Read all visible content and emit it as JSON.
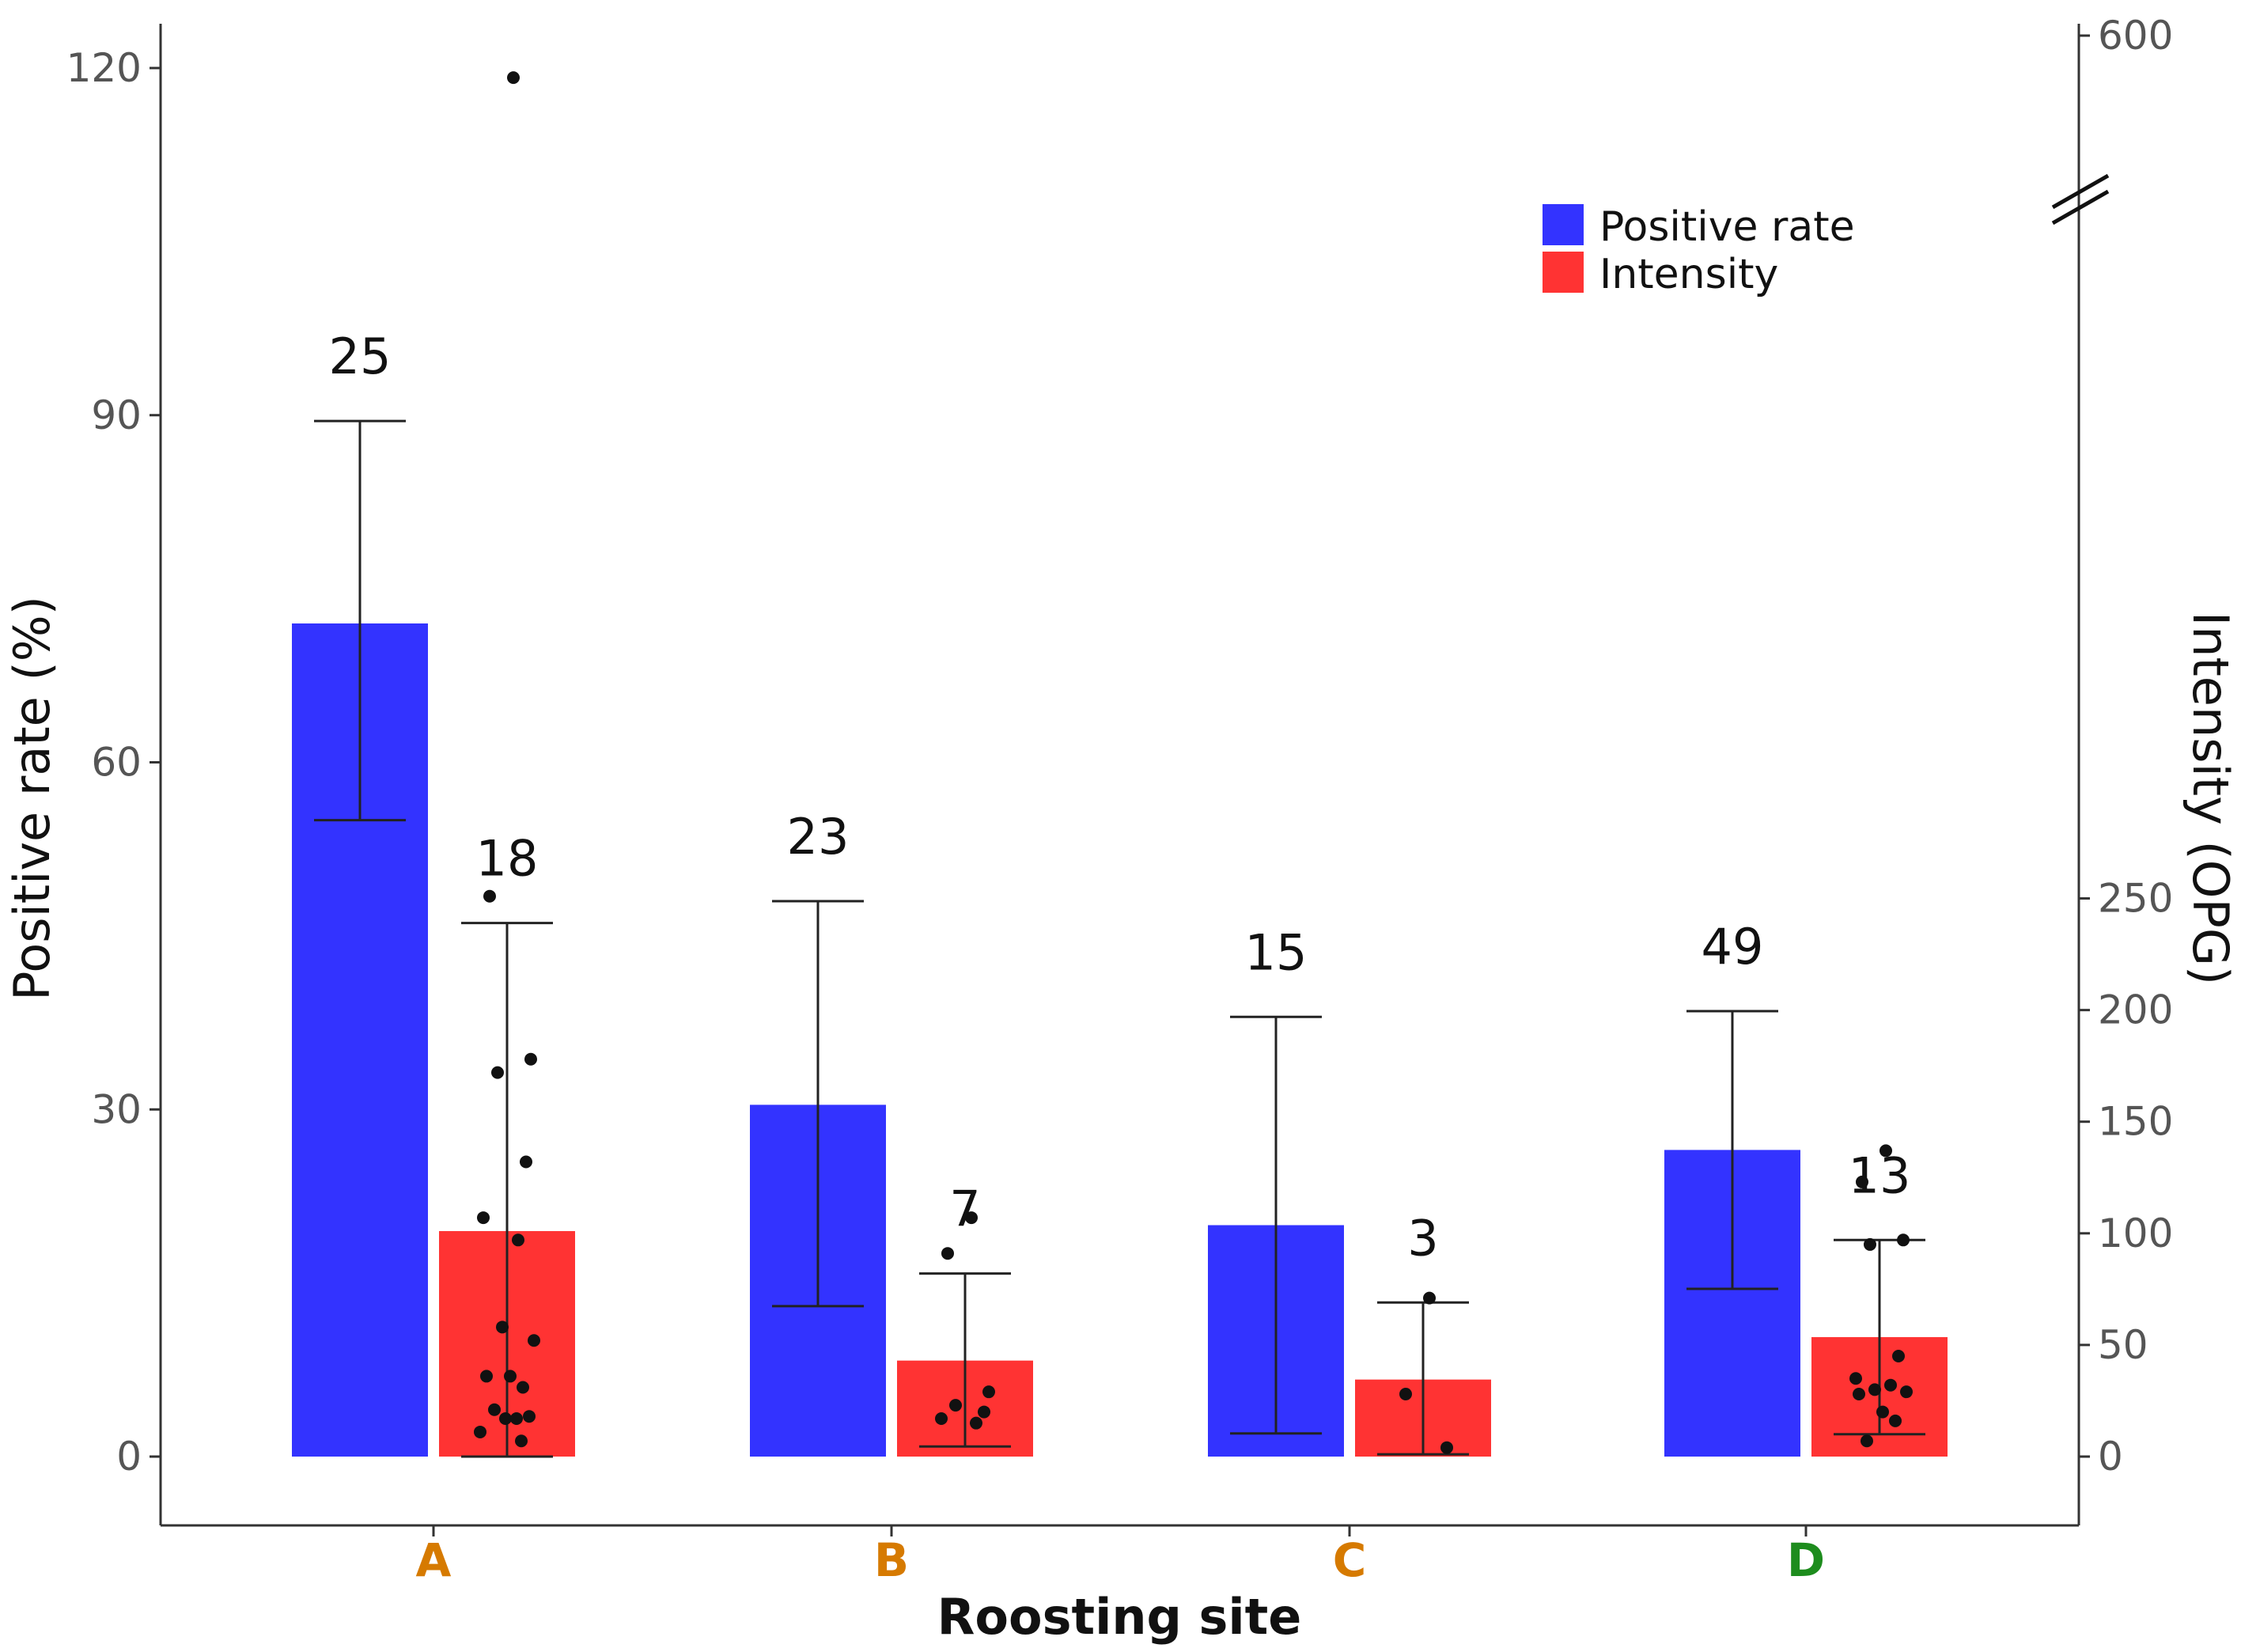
{
  "chart_data": {
    "type": "bar",
    "xlabel": "Roosting site",
    "ylabel": "Positive rate (%)",
    "y2label": "Intensity (OPG)",
    "categories": [
      "A",
      "B",
      "C",
      "D"
    ],
    "category_colors": [
      "#d67a00",
      "#d67a00",
      "#d67a00",
      "#1d8c1d"
    ],
    "ylim": [
      0,
      120
    ],
    "yticks": [
      "0",
      "30",
      "60",
      "90",
      "120"
    ],
    "y2lim": [
      0,
      600
    ],
    "y2_axis_break": [
      260,
      600
    ],
    "y2ticks": [
      "0",
      "50",
      "100",
      "150",
      "200",
      "250",
      "600"
    ],
    "legend": {
      "position": "top-right",
      "entries": [
        {
          "label": "Positive rate",
          "color": "#3333ff"
        },
        {
          "label": "Intensity",
          "color": "#ff3333"
        }
      ]
    },
    "series": [
      {
        "name": "Positive rate",
        "axis": "left",
        "color": "#3333ff",
        "values": [
          72,
          30.4,
          20,
          26.5
        ],
        "error_low": [
          55,
          13,
          2,
          14.5
        ],
        "error_high": [
          89.5,
          48,
          38,
          38.5
        ],
        "n_labels": [
          "25",
          "23",
          "15",
          "49"
        ]
      },
      {
        "name": "Intensity",
        "axis": "right",
        "color": "#ff3333",
        "values": [
          101,
          43,
          34.5,
          53.5
        ],
        "error_low": [
          0,
          4.5,
          1,
          10
        ],
        "error_high": [
          239,
          82,
          69,
          97
        ],
        "n_labels": [
          "18",
          "7",
          "3",
          "13"
        ],
        "points": [
          [
            583,
            251,
            178,
            172,
            132,
            107,
            97,
            58,
            52,
            36,
            36,
            31,
            21,
            18,
            17,
            17,
            11,
            7
          ],
          [
            107,
            91,
            29,
            23,
            20,
            17,
            15
          ],
          [
            71,
            28,
            4
          ],
          [
            137,
            123,
            97,
            95,
            45,
            35,
            32,
            30,
            29,
            28,
            20,
            16,
            7
          ]
        ]
      }
    ]
  }
}
